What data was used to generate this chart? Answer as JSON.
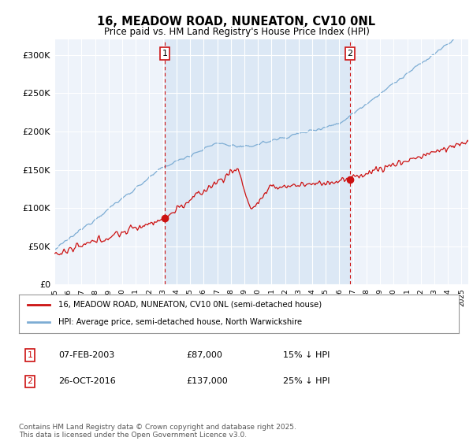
{
  "title_line1": "16, MEADOW ROAD, NUNEATON, CV10 0NL",
  "title_line2": "Price paid vs. HM Land Registry's House Price Index (HPI)",
  "hpi_color": "#7dadd4",
  "hpi_fill_color": "#dce8f5",
  "price_color": "#cc1111",
  "ylim": [
    0,
    320000
  ],
  "yticks": [
    0,
    50000,
    100000,
    150000,
    200000,
    250000,
    300000
  ],
  "ytick_labels": [
    "£0",
    "£50K",
    "£100K",
    "£150K",
    "£200K",
    "£250K",
    "£300K"
  ],
  "legend_label_red": "16, MEADOW ROAD, NUNEATON, CV10 0NL (semi-detached house)",
  "legend_label_blue": "HPI: Average price, semi-detached house, North Warwickshire",
  "annotation1_date": "07-FEB-2003",
  "annotation1_price": "£87,000",
  "annotation1_hpi": "15% ↓ HPI",
  "annotation2_date": "26-OCT-2016",
  "annotation2_price": "£137,000",
  "annotation2_hpi": "25% ↓ HPI",
  "footer": "Contains HM Land Registry data © Crown copyright and database right 2025.\nThis data is licensed under the Open Government Licence v3.0.",
  "plot_bg_color": "#eef3fa",
  "grid_color": "#ffffff",
  "ann1_year": 2003.1,
  "ann2_year": 2016.8,
  "ann1_red_price": 87000,
  "ann2_red_price": 137000,
  "xstart_year": 1995,
  "xend_year": 2025
}
